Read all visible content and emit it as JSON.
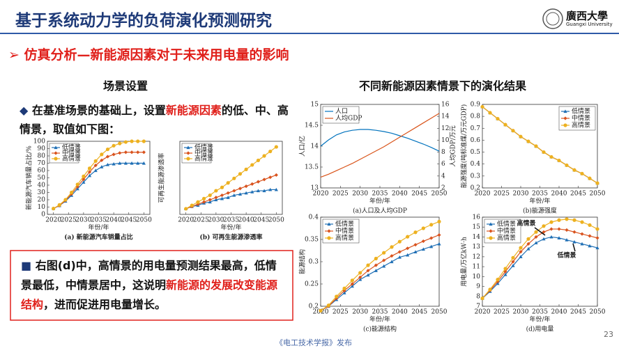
{
  "header": {
    "title": "基于系统动力学的负荷演化预测研究",
    "logo_name": "廣西大學",
    "logo_sub": "Guangxi University"
  },
  "section": "仿真分析—新能源因素对于未来用电量的影响",
  "left_title": "场景设置",
  "bullet": [
    "在基准场景的基础上，设置",
    "新能源因素",
    "的低、中、高情景，取值如下图："
  ],
  "conclusion": [
    "右图(d)中，高情景的用电量预测结果最高，低情景最低，中情景居中，这说明",
    "新能源的发展改变能源结构",
    "，进而促进用电量增长。"
  ],
  "right_title": "不同新能源因素情景下的演化结果",
  "footer": "《电工技术学报》发布",
  "page_number": "23",
  "chart_data": [
    {
      "type": "line",
      "caption": "(a) 新能源汽车销量占比",
      "xlabel": "年份/年",
      "ylabel": "新能源汽车销量占比/%",
      "legend": "upper left",
      "x": [
        2020,
        2022,
        2024,
        2026,
        2028,
        2030,
        2032,
        2034,
        2036,
        2038,
        2040,
        2042,
        2044,
        2046,
        2048,
        2050
      ],
      "xlim": [
        2018,
        2052
      ],
      "xticks": [
        2020,
        2025,
        2030,
        2035,
        2040,
        2045,
        2050
      ],
      "ylim": [
        0,
        100
      ],
      "yticks": [
        0,
        10,
        20,
        30,
        40,
        50,
        60,
        70,
        80,
        90,
        100
      ],
      "series": [
        {
          "name": "低情景",
          "color": "#1f6fb5",
          "marker": "triangle",
          "values": [
            8,
            12,
            18,
            26,
            35,
            44,
            53,
            60,
            65,
            68,
            69,
            70,
            70,
            70,
            70,
            70
          ]
        },
        {
          "name": "中情景",
          "color": "#d9531e",
          "marker": "diamond",
          "values": [
            8,
            12,
            19,
            28,
            38,
            48,
            58,
            67,
            74,
            79,
            82,
            84,
            85,
            85,
            85,
            85
          ]
        },
        {
          "name": "高情景",
          "color": "#edb120",
          "marker": "circle",
          "values": [
            8,
            13,
            20,
            30,
            41,
            52,
            63,
            73,
            82,
            89,
            94,
            97,
            99,
            100,
            100,
            100
          ]
        }
      ]
    },
    {
      "type": "line",
      "caption": "(b) 可再生能源渗透率",
      "xlabel": "年份/年",
      "ylabel": "可再生能源渗透率",
      "legend": "upper left",
      "x": [
        2020,
        2022,
        2024,
        2026,
        2028,
        2030,
        2032,
        2034,
        2036,
        2038,
        2040,
        2042,
        2044,
        2046,
        2048,
        2050
      ],
      "xlim": [
        2018,
        2052
      ],
      "xticks": [
        2020,
        2025,
        2030,
        2035,
        2040,
        2045,
        2050
      ],
      "ylim": [
        0.25,
        0.9
      ],
      "series": [
        {
          "name": "低情景",
          "color": "#1f6fb5",
          "marker": "triangle",
          "values": [
            0.3,
            0.32,
            0.33,
            0.35,
            0.36,
            0.38,
            0.39,
            0.4,
            0.42,
            0.43,
            0.44,
            0.45,
            0.46,
            0.46,
            0.47,
            0.47
          ]
        },
        {
          "name": "中情景",
          "color": "#d9531e",
          "marker": "diamond",
          "values": [
            0.3,
            0.32,
            0.34,
            0.36,
            0.38,
            0.4,
            0.42,
            0.44,
            0.46,
            0.48,
            0.5,
            0.52,
            0.54,
            0.56,
            0.58,
            0.6
          ]
        },
        {
          "name": "高情景",
          "color": "#edb120",
          "marker": "circle",
          "values": [
            0.3,
            0.33,
            0.36,
            0.39,
            0.42,
            0.46,
            0.49,
            0.53,
            0.57,
            0.61,
            0.65,
            0.69,
            0.73,
            0.77,
            0.81,
            0.85
          ]
        }
      ]
    },
    {
      "type": "line",
      "caption": "(a)人口及人均GDP",
      "xlabel": "年份/年",
      "ylabel": "人口/亿",
      "y2label": "人均GDP/万元",
      "legend": "upper left",
      "x": [
        2020,
        2022,
        2024,
        2026,
        2028,
        2030,
        2032,
        2034,
        2036,
        2038,
        2040,
        2042,
        2044,
        2046,
        2048,
        2050
      ],
      "xlim": [
        2020,
        2050
      ],
      "xticks": [
        2020,
        2025,
        2030,
        2035,
        2040,
        2045,
        2050
      ],
      "ylim": [
        13,
        15
      ],
      "yticks": [
        13,
        13.5,
        14,
        14.5,
        15
      ],
      "y2lim": [
        2,
        16
      ],
      "y2ticks": [
        2,
        4,
        6,
        8,
        10,
        12,
        14,
        16
      ],
      "series": [
        {
          "name": "人口",
          "color": "#0072bd",
          "values": [
            14.0,
            14.15,
            14.27,
            14.34,
            14.38,
            14.4,
            14.4,
            14.38,
            14.35,
            14.31,
            14.25,
            14.19,
            14.12,
            14.05,
            13.97,
            13.88
          ]
        },
        {
          "name": "人均GDP",
          "color": "#d95319",
          "axis": "y2",
          "values": [
            3.8,
            4.3,
            4.9,
            5.5,
            6.1,
            6.8,
            7.5,
            8.2,
            8.9,
            9.7,
            10.5,
            11.3,
            12.1,
            12.9,
            13.7,
            14.5
          ]
        }
      ]
    },
    {
      "type": "line",
      "caption": "(b)能源强度",
      "xlabel": "年份/年",
      "ylabel": "能源强度(吨标准煤/万元GDP)",
      "legend": "upper right",
      "x": [
        2020,
        2022,
        2024,
        2026,
        2028,
        2030,
        2032,
        2034,
        2036,
        2038,
        2040,
        2042,
        2044,
        2046,
        2048,
        2050
      ],
      "xlim": [
        2020,
        2050
      ],
      "xticks": [
        2020,
        2025,
        2030,
        2035,
        2040,
        2045,
        2050
      ],
      "ylim": [
        0.2,
        0.9
      ],
      "yticks": [
        0.2,
        0.3,
        0.4,
        0.5,
        0.6,
        0.7,
        0.8,
        0.9
      ],
      "series": [
        {
          "name": "低情景",
          "color": "#1f6fb5",
          "marker": "triangle",
          "values": [
            0.88,
            0.83,
            0.78,
            0.73,
            0.68,
            0.63,
            0.59,
            0.55,
            0.5,
            0.46,
            0.43,
            0.39,
            0.35,
            0.32,
            0.28,
            0.24
          ]
        },
        {
          "name": "中情景",
          "color": "#d9531e",
          "marker": "diamond",
          "values": [
            0.88,
            0.83,
            0.78,
            0.73,
            0.68,
            0.63,
            0.59,
            0.55,
            0.5,
            0.46,
            0.43,
            0.39,
            0.35,
            0.32,
            0.28,
            0.24
          ]
        },
        {
          "name": "高情景",
          "color": "#edb120",
          "marker": "circle",
          "values": [
            0.88,
            0.83,
            0.78,
            0.73,
            0.68,
            0.63,
            0.59,
            0.55,
            0.5,
            0.46,
            0.43,
            0.39,
            0.35,
            0.32,
            0.28,
            0.24
          ]
        }
      ]
    },
    {
      "type": "line",
      "caption": "(c)能源结构",
      "xlabel": "年份/年",
      "ylabel": "能源结构",
      "legend": "upper left",
      "x": [
        2020,
        2022,
        2024,
        2026,
        2028,
        2030,
        2032,
        2034,
        2036,
        2038,
        2040,
        2042,
        2044,
        2046,
        2048,
        2050
      ],
      "xlim": [
        2020,
        2050
      ],
      "xticks": [
        2020,
        2025,
        2030,
        2035,
        2040,
        2045,
        2050
      ],
      "ylim": [
        0.2,
        0.4
      ],
      "yticks": [
        0.2,
        0.25,
        0.3,
        0.35,
        0.4
      ],
      "series": [
        {
          "name": "低情景",
          "color": "#1f6fb5",
          "marker": "triangle",
          "values": [
            0.19,
            0.2,
            0.215,
            0.23,
            0.245,
            0.26,
            0.27,
            0.28,
            0.29,
            0.3,
            0.31,
            0.315,
            0.322,
            0.328,
            0.334,
            0.34
          ]
        },
        {
          "name": "中情景",
          "color": "#d9531e",
          "marker": "diamond",
          "values": [
            0.19,
            0.2,
            0.218,
            0.235,
            0.25,
            0.265,
            0.28,
            0.292,
            0.303,
            0.313,
            0.322,
            0.33,
            0.338,
            0.346,
            0.353,
            0.36
          ]
        },
        {
          "name": "高情景",
          "color": "#edb120",
          "marker": "circle",
          "values": [
            0.19,
            0.202,
            0.222,
            0.24,
            0.258,
            0.275,
            0.292,
            0.307,
            0.32,
            0.333,
            0.345,
            0.356,
            0.366,
            0.375,
            0.383,
            0.39
          ]
        }
      ]
    },
    {
      "type": "line",
      "caption": "(d)用电量",
      "xlabel": "年份/年",
      "ylabel": "用电量/万亿kW·h",
      "legend": "upper left",
      "annotations": [
        "高情景",
        "低情景"
      ],
      "x": [
        2020,
        2022,
        2024,
        2026,
        2028,
        2030,
        2032,
        2034,
        2036,
        2038,
        2040,
        2042,
        2044,
        2046,
        2048,
        2050
      ],
      "xlim": [
        2020,
        2050
      ],
      "xticks": [
        2020,
        2025,
        2030,
        2035,
        2040,
        2045,
        2050
      ],
      "ylim": [
        7,
        16
      ],
      "yticks": [
        7,
        8,
        9,
        10,
        11,
        12,
        13,
        14,
        15,
        16
      ],
      "series": [
        {
          "name": "低情景",
          "color": "#1f6fb5",
          "marker": "triangle",
          "values": [
            7.8,
            8.5,
            9.3,
            10.2,
            11.1,
            12.0,
            12.8,
            13.4,
            13.8,
            14.0,
            13.9,
            13.7,
            13.5,
            13.3,
            13.1,
            12.9
          ]
        },
        {
          "name": "中情景",
          "color": "#d9531e",
          "marker": "diamond",
          "values": [
            7.8,
            8.6,
            9.5,
            10.5,
            11.5,
            12.5,
            13.3,
            14.0,
            14.5,
            14.8,
            14.8,
            14.7,
            14.5,
            14.3,
            14.1,
            13.9
          ]
        },
        {
          "name": "高情景",
          "color": "#edb120",
          "marker": "circle",
          "values": [
            7.8,
            8.7,
            9.7,
            10.8,
            11.9,
            12.9,
            13.8,
            14.5,
            15.1,
            15.5,
            15.7,
            15.8,
            15.7,
            15.5,
            15.2,
            14.8
          ]
        }
      ]
    }
  ]
}
